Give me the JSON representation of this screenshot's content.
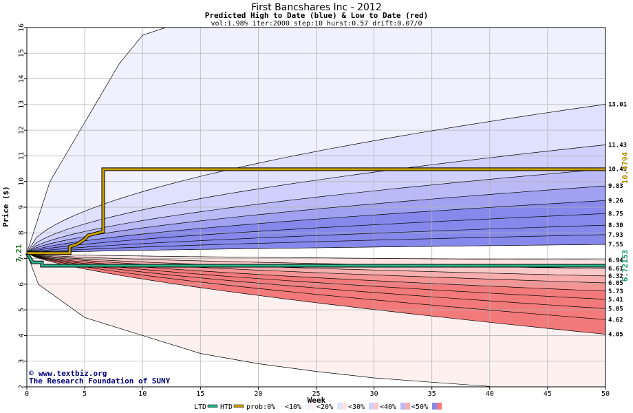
{
  "chart_data": {
    "type": "area",
    "title": "First Bancshares Inc - 2012",
    "subtitle": "Predicted High to Date (blue) &  Low to Date (red)",
    "params": "vol:1.98% iter:2000 step:10 hurst:0.57 drift:0.07/0",
    "xlabel": "Week",
    "ylabel": "Price ($)",
    "xlim": [
      0,
      50
    ],
    "ylim": [
      2,
      16
    ],
    "x_ticks": [
      "0",
      "5",
      "10",
      "15",
      "20",
      "25",
      "30",
      "35",
      "40",
      "45",
      "50"
    ],
    "y_ticks": [
      "2",
      "3",
      "4",
      "5",
      "6",
      "7",
      "8",
      "9",
      "10",
      "11",
      "12",
      "13",
      "14",
      "15",
      "16"
    ],
    "grid": true,
    "start_price": 7.21,
    "start_label": "7.21",
    "right_labels": [
      "13.01",
      "11.43",
      "10.49",
      "9.83",
      "9.26",
      "8.75",
      "8.30",
      "7.93",
      "7.55",
      "6.94",
      "6.61",
      "6.32",
      "6.05",
      "5.73",
      "5.41",
      "5.05",
      "4.62",
      "4.05"
    ],
    "high_quantile_end": [
      13.01,
      11.43,
      10.49,
      9.83,
      9.26,
      8.75,
      8.3,
      7.93,
      7.55
    ],
    "low_quantile_end": [
      6.94,
      6.61,
      6.32,
      6.05,
      5.73,
      5.41,
      5.05,
      4.62,
      4.05
    ],
    "high_extreme": [
      [
        0,
        7.21
      ],
      [
        2,
        10.0
      ],
      [
        5,
        12.3
      ],
      [
        8,
        14.6
      ],
      [
        10,
        15.7
      ],
      [
        12,
        16.0
      ]
    ],
    "low_extreme": [
      [
        0,
        7.21
      ],
      [
        1,
        6.0
      ],
      [
        5,
        4.7
      ],
      [
        10,
        4.0
      ],
      [
        15,
        3.3
      ],
      [
        20,
        2.9
      ],
      [
        25,
        2.6
      ],
      [
        30,
        2.35
      ],
      [
        35,
        2.18
      ],
      [
        40,
        2.02
      ]
    ],
    "htd_series": {
      "name": "HTD",
      "points": [
        [
          0,
          7.21
        ],
        [
          1,
          7.21
        ],
        [
          3.7,
          7.21
        ],
        [
          3.7,
          7.46
        ],
        [
          4.3,
          7.55
        ],
        [
          5,
          7.75
        ],
        [
          5.3,
          7.9
        ],
        [
          6.6,
          8.05
        ],
        [
          6.6,
          10.479
        ],
        [
          50,
          10.479
        ]
      ],
      "end_label": "10.4794",
      "color": "#c8a000"
    },
    "ltd_series": {
      "name": "LTD",
      "points": [
        [
          0,
          7.21
        ],
        [
          0.5,
          6.85
        ],
        [
          1.3,
          6.85
        ],
        [
          1.3,
          6.72
        ],
        [
          50,
          6.72153
        ]
      ],
      "end_label": "6.72153",
      "color": "#2bb38a"
    },
    "legend": {
      "ltd": "LTD",
      "htd": "HTD",
      "prob": "prob:0%",
      "buckets": [
        "<10%",
        "<20%",
        "<30%",
        "<40%",
        "<50%"
      ]
    },
    "credits": [
      "www.textbiz.org",
      "The Research Foundation of SUNY"
    ],
    "copyright_symbol": "©",
    "colors": {
      "blue_bands": [
        "#f0f0ff",
        "#e0e0ff",
        "#cfd0fb",
        "#b9baf6",
        "#a0a2f1",
        "#8688ec"
      ],
      "red_bands": [
        "#fff0f0",
        "#ffe0e0",
        "#fcc8c8",
        "#f9aeae",
        "#f69494",
        "#f37a7a"
      ],
      "htd": "#c8a000",
      "ltd": "#2bb38a",
      "grid": "#b4b4b4"
    }
  }
}
